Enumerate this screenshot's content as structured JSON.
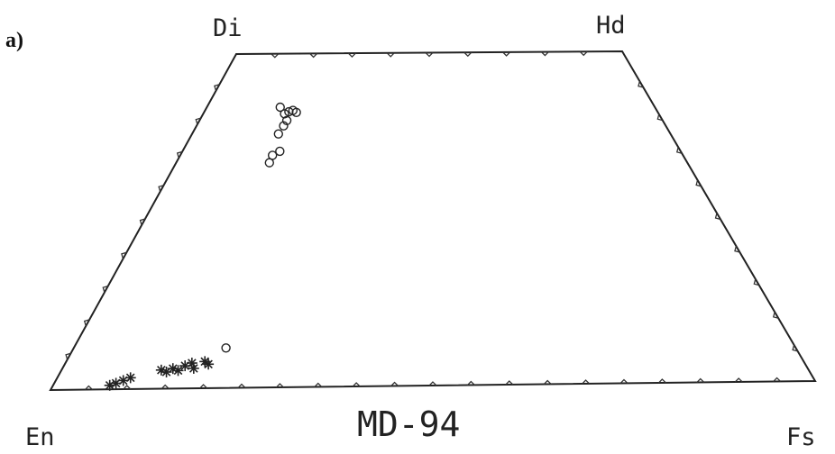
{
  "panel_label": "a)",
  "sample_name": "MD-94",
  "apices": {
    "top_left": "Di",
    "top_right": "Hd",
    "bottom_left": "En",
    "bottom_right": "Fs"
  },
  "colors": {
    "ink": "#222222",
    "background": "#ffffff"
  },
  "chart_data": {
    "type": "scatter",
    "diagram": "pyroxene quadrilateral",
    "axes": {
      "fs_fraction_range": [
        0,
        1
      ],
      "wo_fraction_range": [
        0,
        0.5
      ]
    },
    "series": [
      {
        "marker": "circle",
        "points": [
          {
            "fs": 0.165,
            "wo": 0.42
          },
          {
            "fs": 0.18,
            "wo": 0.41
          },
          {
            "fs": 0.188,
            "wo": 0.413
          },
          {
            "fs": 0.196,
            "wo": 0.415
          },
          {
            "fs": 0.205,
            "wo": 0.412
          },
          {
            "fs": 0.19,
            "wo": 0.4
          },
          {
            "fs": 0.187,
            "wo": 0.392
          },
          {
            "fs": 0.182,
            "wo": 0.38
          },
          {
            "fs": 0.185,
            "wo": 0.348
          },
          {
            "fs": 0.197,
            "wo": 0.354
          },
          {
            "fs": 0.184,
            "wo": 0.337
          },
          {
            "fs": 0.213,
            "wo": 0.06
          }
        ]
      },
      {
        "marker": "star",
        "points": [
          {
            "fs": 0.075,
            "wo": 0.006
          },
          {
            "fs": 0.082,
            "wo": 0.009
          },
          {
            "fs": 0.09,
            "wo": 0.013
          },
          {
            "fs": 0.098,
            "wo": 0.017
          },
          {
            "fs": 0.135,
            "wo": 0.028
          },
          {
            "fs": 0.143,
            "wo": 0.025
          },
          {
            "fs": 0.15,
            "wo": 0.03
          },
          {
            "fs": 0.158,
            "wo": 0.027
          },
          {
            "fs": 0.165,
            "wo": 0.034
          },
          {
            "fs": 0.173,
            "wo": 0.038
          },
          {
            "fs": 0.178,
            "wo": 0.03
          },
          {
            "fs": 0.19,
            "wo": 0.04
          },
          {
            "fs": 0.196,
            "wo": 0.036
          }
        ]
      }
    ]
  }
}
